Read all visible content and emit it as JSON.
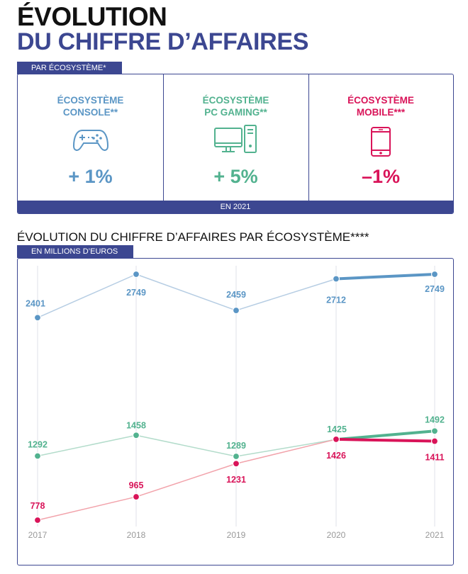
{
  "header": {
    "title_line1": "ÉVOLUTION",
    "title_line2": "DU CHIFFRE D’AFFAIRES"
  },
  "ecosystems_panel": {
    "tag": "PAR ÉCOSYSTÈME*",
    "footer": "EN 2021",
    "items": [
      {
        "label_line1": "ÉCOSYSTÈME",
        "label_line2": "CONSOLE**",
        "value": "+ 1%",
        "icon": "gamepad-icon",
        "color": "#5b96c5"
      },
      {
        "label_line1": "ÉCOSYSTÈME",
        "label_line2": "PC GAMING**",
        "value": "+ 5%",
        "icon": "desktop-computer-icon",
        "color": "#52b28f"
      },
      {
        "label_line1": "ÉCOSYSTÈME",
        "label_line2": "MOBILE***",
        "value": "–1%",
        "icon": "smartphone-icon",
        "color": "#d91459"
      }
    ]
  },
  "chart_section": {
    "title": "ÉVOLUTION DU CHIFFRE D’AFFAIRES PAR ÉCOSYSTÈME****",
    "tag": "EN MILLIONS D’EUROS"
  },
  "chart_data": {
    "type": "line",
    "title": "ÉVOLUTION DU CHIFFRE D’AFFAIRES PAR ÉCOSYSTÈME****",
    "ylabel": "EN MILLIONS D’EUROS",
    "xlabel": "",
    "grid": "vertical",
    "categories": [
      "2017",
      "2018",
      "2019",
      "2020",
      "2021"
    ],
    "series": [
      {
        "name": "Console",
        "color": "#5b96c5",
        "light_color": "#b6cde3",
        "values": [
          2401,
          2749,
          2459,
          2712,
          2749
        ],
        "labels": [
          "2401",
          "2749",
          "2459",
          "2712",
          "2749"
        ]
      },
      {
        "name": "PC Gaming",
        "color": "#52b28f",
        "light_color": "#b3dccb",
        "values": [
          1292,
          1458,
          1289,
          1425,
          1492
        ],
        "labels": [
          "1292",
          "1458",
          "1289",
          "1425",
          "1492"
        ]
      },
      {
        "name": "Mobile",
        "color": "#d91459",
        "light_color": "#f2a3ab",
        "values": [
          778,
          965,
          1231,
          1426,
          1411
        ],
        "labels": [
          "778",
          "965",
          "1231",
          "1426",
          "1411"
        ]
      }
    ]
  }
}
